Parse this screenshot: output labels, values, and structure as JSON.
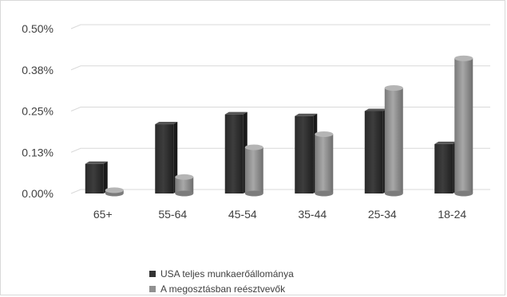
{
  "chart_data": {
    "type": "bar",
    "categories": [
      "65+",
      "55-64",
      "45-54",
      "35-44",
      "25-34",
      "18-24"
    ],
    "series": [
      {
        "name": "USA teljes munkaerőállománya",
        "values": [
          0.0009,
          0.0021,
          0.0024,
          0.00235,
          0.0025,
          0.0015
        ],
        "color": "#333333"
      },
      {
        "name": "A megosztásban reésztvevők",
        "values": [
          0.0001,
          0.0005,
          0.0014,
          0.0018,
          0.0032,
          0.0041
        ],
        "color": "#909090"
      }
    ],
    "yticks": [
      "0.00%",
      "0.13%",
      "0.25%",
      "0.38%",
      "0.50%"
    ],
    "ytick_values": [
      0,
      0.00125,
      0.0025,
      0.00375,
      0.005
    ],
    "ylim": [
      0,
      0.005
    ],
    "grid": true,
    "legend_position": "bottom",
    "style": "3d-cylinder-columns"
  }
}
